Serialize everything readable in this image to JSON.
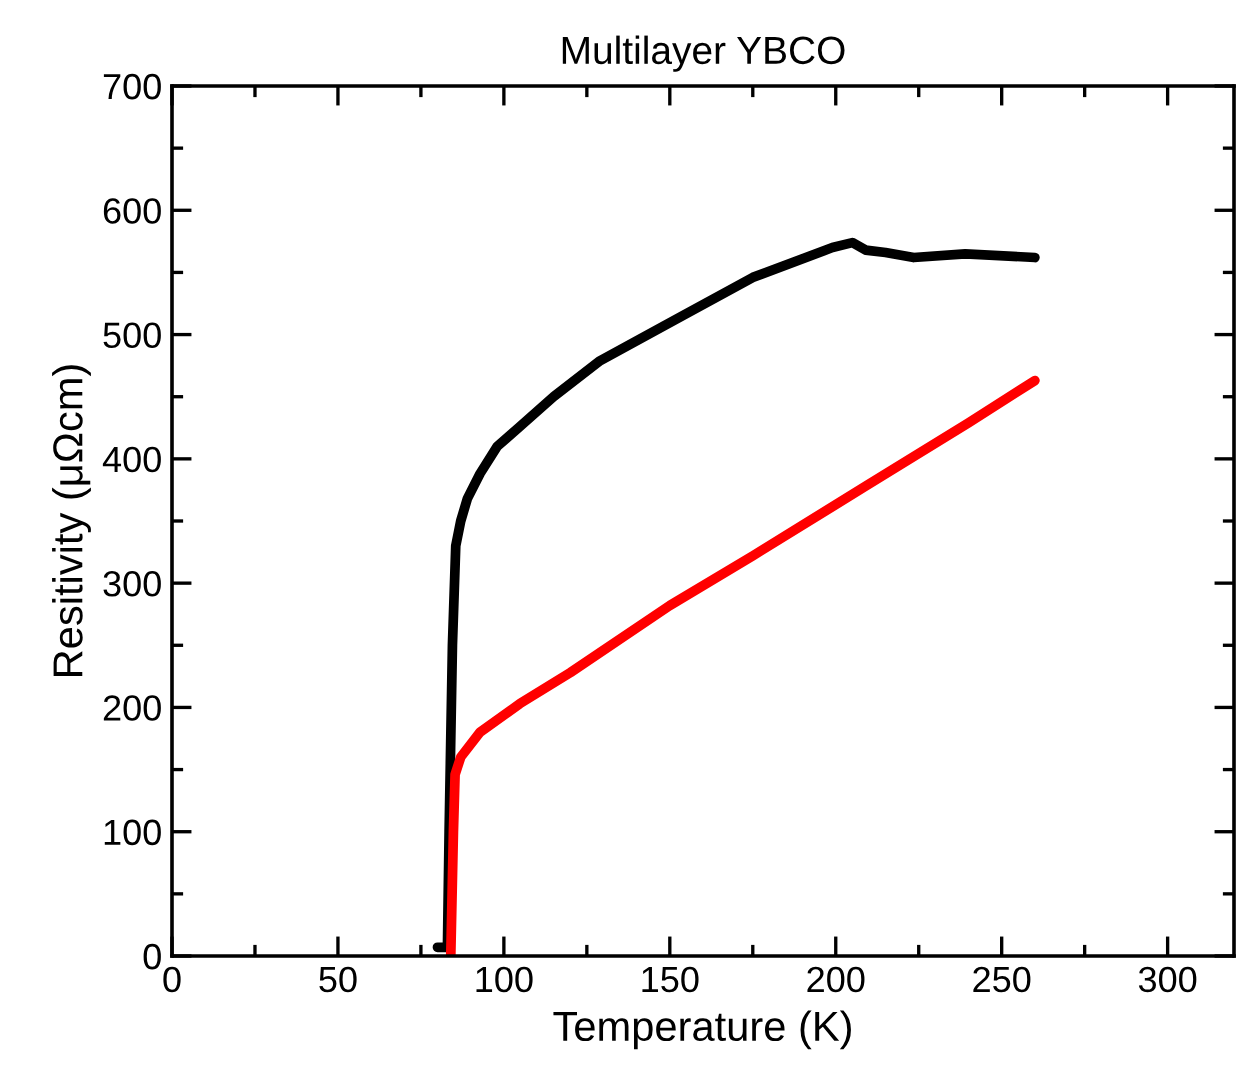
{
  "chart_data": {
    "type": "line",
    "title": "Multilayer YBCO",
    "xlabel": "Temperature (K)",
    "ylabel": "Resitivity (μΩcm)",
    "xlim": [
      0,
      320
    ],
    "ylim": [
      0,
      700
    ],
    "xticks": [
      0,
      50,
      100,
      150,
      200,
      250,
      300
    ],
    "yticks": [
      0,
      100,
      200,
      300,
      400,
      500,
      600,
      700
    ],
    "grid": false,
    "marker": "none",
    "line_style": "solid",
    "series": [
      {
        "color": "#000000",
        "x": [
          80,
          83,
          83.5,
          84.5,
          85.5,
          87,
          89,
          92.8,
          98,
          104.8,
          115,
          129,
          153,
          175,
          199,
          205,
          209,
          215,
          223.5,
          239,
          260
        ],
        "values": [
          7,
          7,
          100,
          250,
          330,
          350,
          368,
          388,
          410,
          426,
          450,
          479,
          514,
          546,
          570,
          574,
          568,
          566,
          562,
          565,
          562
        ]
      },
      {
        "color": "#ff0000",
        "x": [
          84,
          84.8,
          85.3,
          87,
          92.8,
          104.8,
          120,
          150,
          175,
          209,
          240,
          260
        ],
        "values": [
          0,
          100,
          146,
          160,
          180,
          203,
          228,
          282,
          322,
          378,
          429,
          463
        ]
      }
    ]
  }
}
